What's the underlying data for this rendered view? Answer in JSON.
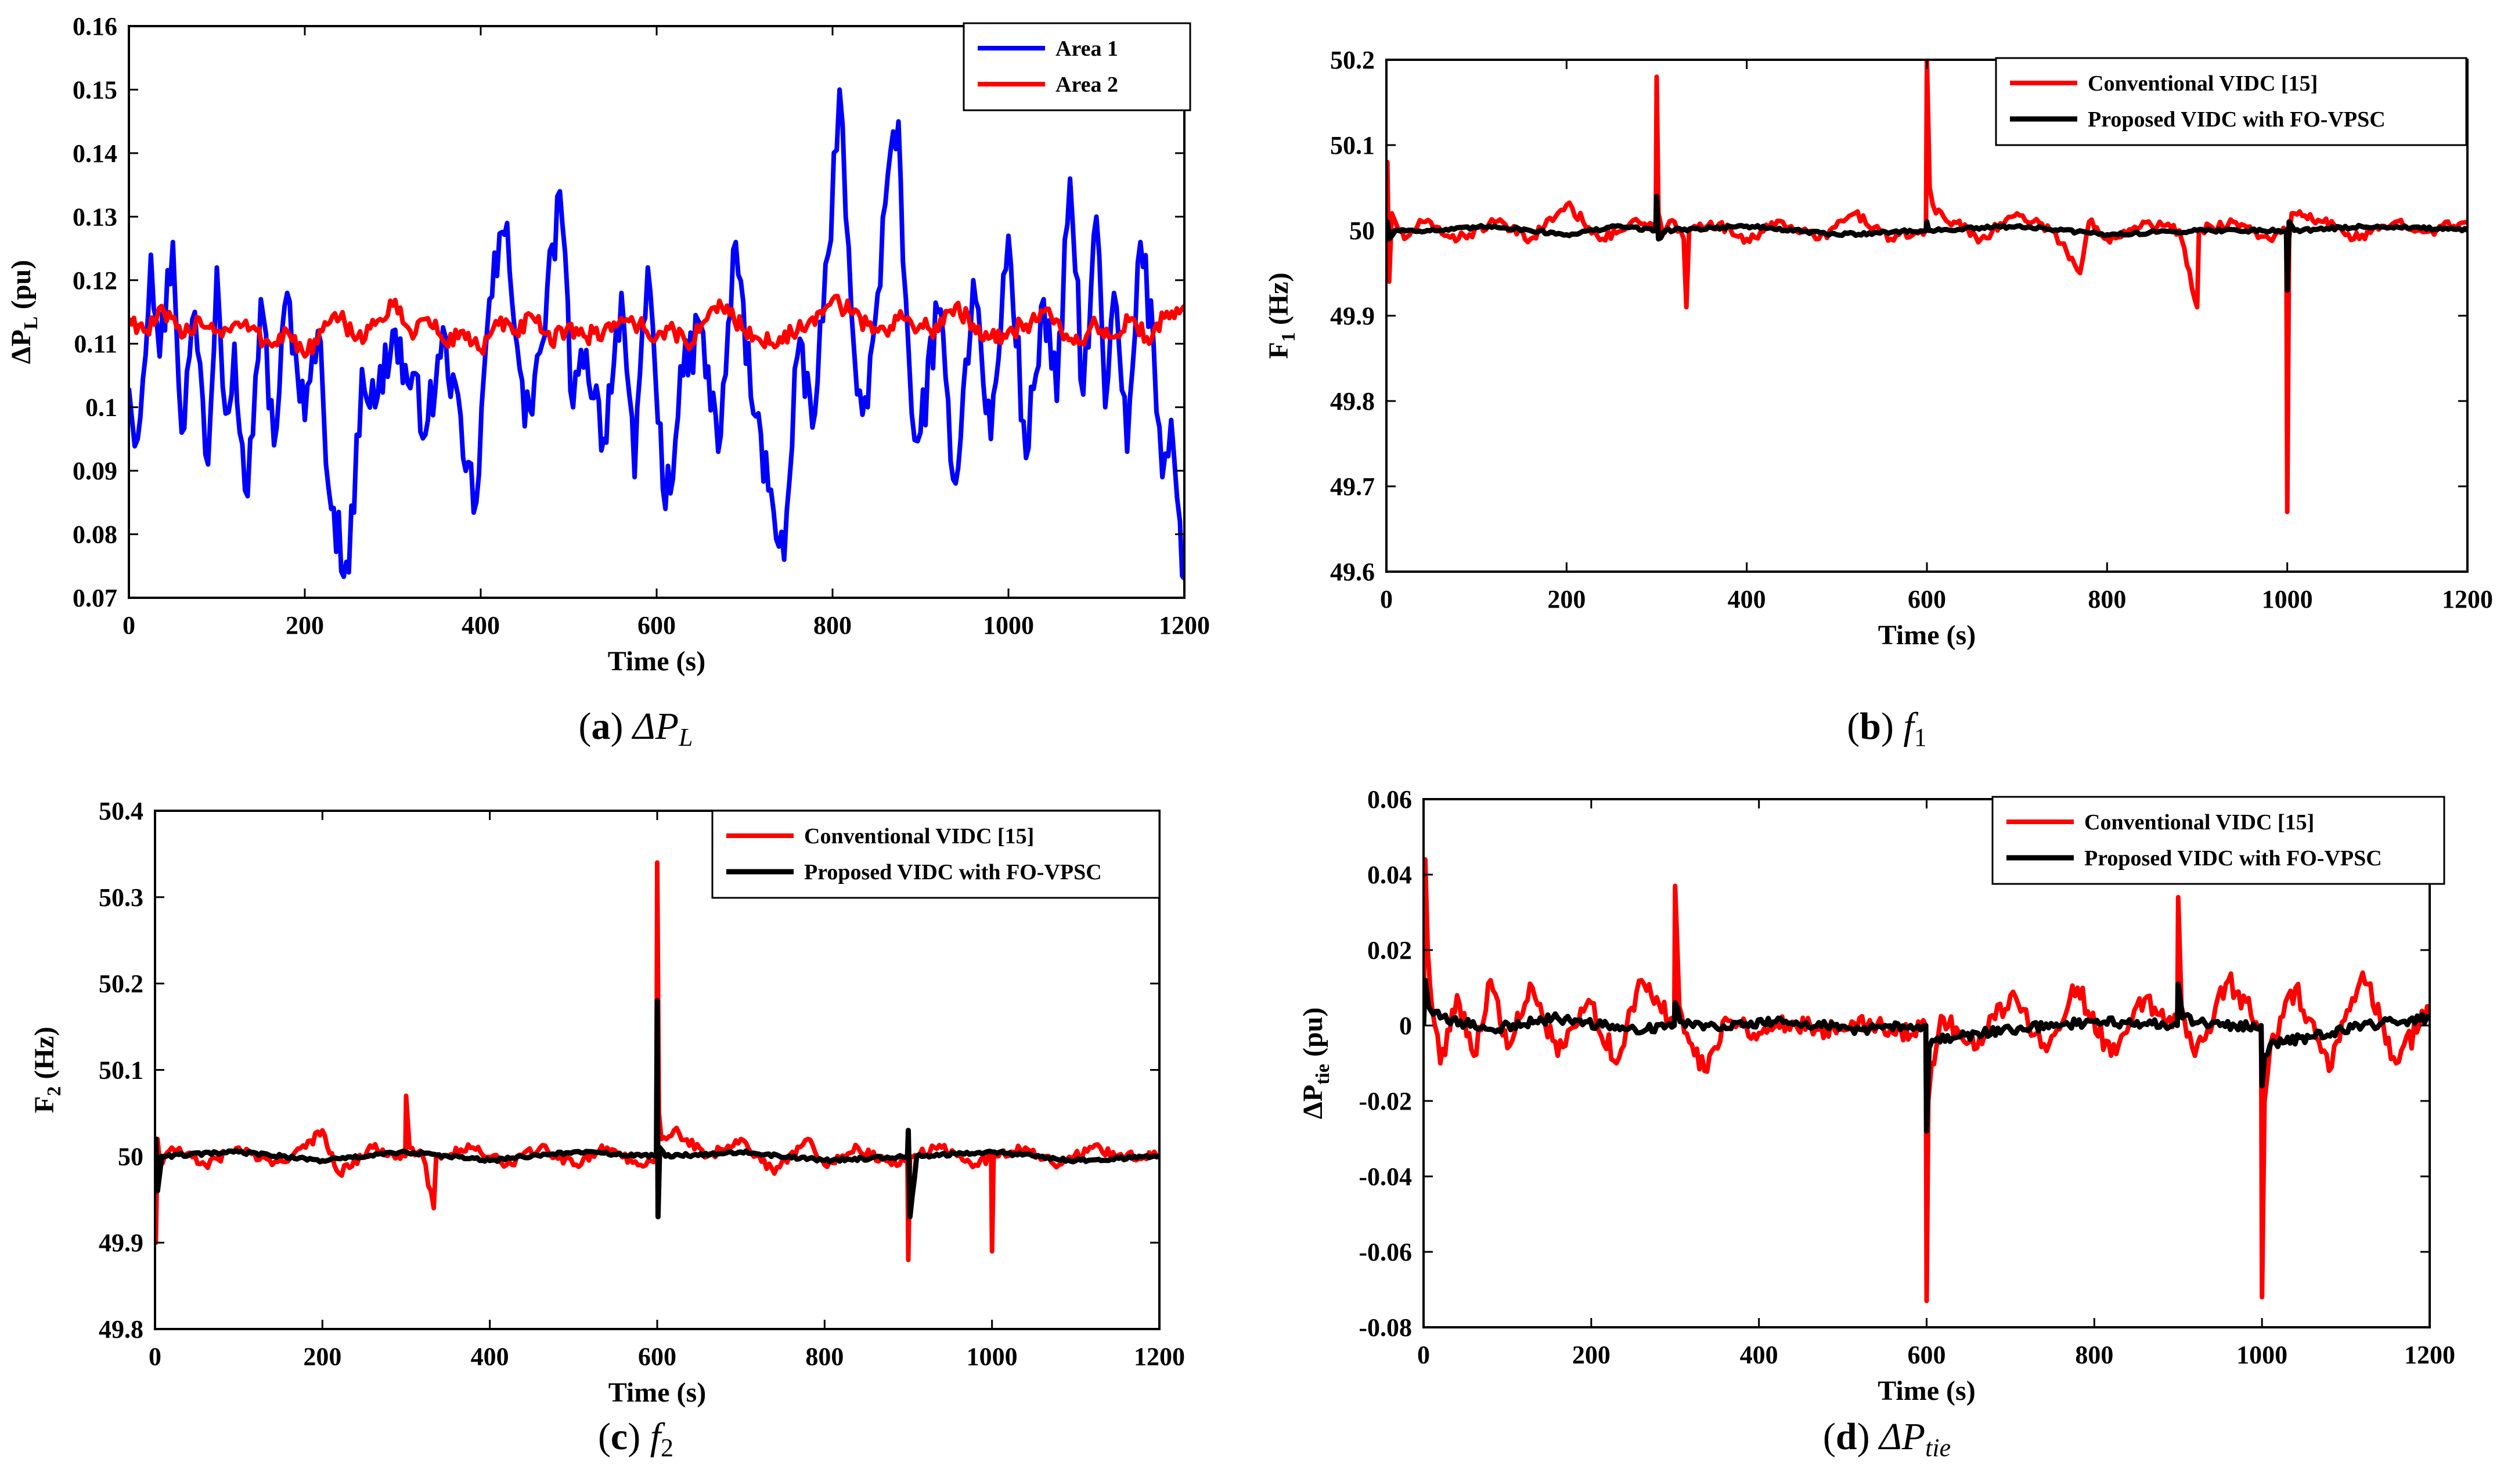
{
  "figure": {
    "panels": [
      {
        "letter": "a",
        "sym": "ΔP",
        "sub": "L"
      },
      {
        "letter": "b",
        "sym": "f",
        "sub": "1"
      },
      {
        "letter": "c",
        "sym": "f",
        "sub": "2"
      },
      {
        "letter": "d",
        "sym": "ΔP",
        "sub": "tie"
      }
    ]
  },
  "chart_data": [
    {
      "type": "line",
      "panel": "a",
      "title": "",
      "xlabel": "Time (s)",
      "ylabel": {
        "main": "ΔP",
        "sub": "L",
        "unit": " (pu)"
      },
      "xlim": [
        0,
        1200
      ],
      "ylim": [
        0.07,
        0.16
      ],
      "x_ticks": [
        0,
        200,
        400,
        600,
        800,
        1000,
        1200
      ],
      "x_tick_labels": [
        "0",
        "200",
        "400",
        "600",
        "800",
        "1000",
        "1200"
      ],
      "y_ticks": [
        0.07,
        0.08,
        0.09,
        0.1,
        0.11,
        0.12,
        0.13,
        0.14,
        0.15,
        0.16
      ],
      "y_tick_labels": [
        "0.07",
        "0.08",
        "0.09",
        "0.1",
        "0.11",
        "0.12",
        "0.13",
        "0.14",
        "0.15",
        "0.16"
      ],
      "legend_position": "top-right",
      "series": [
        {
          "name": "Area 1",
          "color": "#0000ff",
          "width": 8,
          "x": [
            0,
            10,
            25,
            35,
            50,
            60,
            75,
            90,
            100,
            110,
            120,
            135,
            150,
            165,
            180,
            200,
            215,
            230,
            250,
            265,
            280,
            300,
            320,
            340,
            360,
            380,
            395,
            410,
            430,
            450,
            470,
            490,
            505,
            520,
            540,
            560,
            575,
            590,
            610,
            630,
            650,
            670,
            690,
            710,
            730,
            745,
            760,
            780,
            795,
            808,
            815,
            825,
            840,
            860,
            875,
            880,
            890,
            900,
            920,
            940,
            960,
            980,
            1000,
            1020,
            1040,
            1055,
            1070,
            1085,
            1100,
            1110,
            1120,
            1135,
            1150,
            1165,
            1175,
            1185,
            1195,
            1200
          ],
          "values": [
            0.103,
            0.095,
            0.124,
            0.108,
            0.126,
            0.096,
            0.115,
            0.091,
            0.122,
            0.099,
            0.11,
            0.086,
            0.117,
            0.094,
            0.118,
            0.098,
            0.112,
            0.084,
            0.074,
            0.106,
            0.1,
            0.112,
            0.103,
            0.098,
            0.111,
            0.092,
            0.085,
            0.117,
            0.129,
            0.097,
            0.11,
            0.134,
            0.1,
            0.109,
            0.095,
            0.118,
            0.089,
            0.122,
            0.084,
            0.105,
            0.113,
            0.093,
            0.126,
            0.099,
            0.087,
            0.076,
            0.108,
            0.099,
            0.124,
            0.15,
            0.13,
            0.108,
            0.1,
            0.132,
            0.145,
            0.123,
            0.099,
            0.096,
            0.115,
            0.088,
            0.12,
            0.095,
            0.127,
            0.092,
            0.117,
            0.101,
            0.136,
            0.102,
            0.13,
            0.1,
            0.118,
            0.093,
            0.126,
            0.11,
            0.089,
            0.098,
            0.082,
            0.073
          ]
        },
        {
          "name": "Area 2",
          "color": "#ff0000",
          "width": 8,
          "x": [
            0,
            20,
            40,
            60,
            80,
            100,
            130,
            160,
            180,
            200,
            220,
            240,
            260,
            280,
            300,
            320,
            340,
            360,
            380,
            400,
            420,
            440,
            460,
            480,
            500,
            520,
            540,
            560,
            580,
            600,
            620,
            640,
            660,
            680,
            700,
            720,
            740,
            760,
            780,
            800,
            820,
            840,
            860,
            880,
            900,
            920,
            940,
            960,
            980,
            1000,
            1020,
            1040,
            1060,
            1080,
            1100,
            1120,
            1140,
            1160,
            1180,
            1200
          ],
          "values": [
            0.114,
            0.112,
            0.115,
            0.111,
            0.114,
            0.112,
            0.113,
            0.11,
            0.112,
            0.108,
            0.112,
            0.114,
            0.111,
            0.113,
            0.116,
            0.112,
            0.114,
            0.11,
            0.112,
            0.109,
            0.113,
            0.112,
            0.114,
            0.11,
            0.113,
            0.111,
            0.112,
            0.114,
            0.113,
            0.111,
            0.112,
            0.11,
            0.115,
            0.116,
            0.112,
            0.11,
            0.111,
            0.112,
            0.113,
            0.117,
            0.115,
            0.113,
            0.112,
            0.114,
            0.113,
            0.112,
            0.116,
            0.113,
            0.111,
            0.112,
            0.113,
            0.115,
            0.112,
            0.11,
            0.113,
            0.111,
            0.114,
            0.11,
            0.115,
            0.116
          ]
        }
      ]
    },
    {
      "type": "line",
      "panel": "b",
      "title": "",
      "xlabel": "Time (s)",
      "ylabel": {
        "main": "F",
        "sub": "1",
        "unit": " (Hz)"
      },
      "xlim": [
        0,
        1200
      ],
      "ylim": [
        49.6,
        50.2
      ],
      "x_ticks": [
        0,
        200,
        400,
        600,
        800,
        1000,
        1200
      ],
      "x_tick_labels": [
        "0",
        "200",
        "400",
        "600",
        "800",
        "1000",
        "1200"
      ],
      "y_ticks": [
        49.6,
        49.7,
        49.8,
        49.9,
        50,
        50.1,
        50.2
      ],
      "y_tick_labels": [
        "49.6",
        "49.7",
        "49.8",
        "49.9",
        "50",
        "50.1",
        "50.2"
      ],
      "legend_position": "top-right",
      "series": [
        {
          "name": "Conventional VIDC [15]",
          "color": "#ff0000",
          "width": 8,
          "x": [
            0,
            1,
            3,
            6,
            10,
            20,
            40,
            80,
            120,
            160,
            200,
            240,
            280,
            299,
            300,
            302,
            306,
            320,
            330,
            333,
            336,
            360,
            400,
            440,
            480,
            520,
            560,
            599,
            600,
            603,
            610,
            630,
            660,
            700,
            740,
            770,
            780,
            800,
            840,
            880,
            900,
            902,
            940,
            980,
            999,
            1000,
            1002,
            1005,
            1040,
            1080,
            1120,
            1160,
            1200
          ],
          "values": [
            50,
            50.08,
            49.94,
            50.02,
            50.01,
            49.99,
            50.01,
            49.99,
            50.01,
            49.99,
            50.03,
            49.99,
            50.01,
            50,
            50.18,
            50.02,
            50,
            50.01,
            49.99,
            49.91,
            50,
            50.01,
            49.99,
            50.01,
            49.99,
            50.02,
            49.99,
            50,
            50.2,
            50.05,
            50.02,
            50.01,
            49.99,
            50.02,
            50,
            49.95,
            50.01,
            49.99,
            50.01,
            50,
            49.91,
            50,
            50.01,
            49.99,
            50,
            49.67,
            49.99,
            50.02,
            50.01,
            49.99,
            50.01,
            50,
            50.01
          ]
        },
        {
          "name": "Proposed VIDC with FO-VPSC",
          "color": "#000000",
          "width": 9,
          "x": [
            0,
            1,
            3,
            10,
            60,
            120,
            200,
            260,
            299,
            300,
            302,
            310,
            400,
            500,
            599,
            600,
            602,
            610,
            700,
            800,
            900,
            999,
            1000,
            1002,
            1008,
            1100,
            1200
          ],
          "values": [
            50,
            50.01,
            49.99,
            50,
            50,
            50.005,
            49.995,
            50.005,
            50,
            50.04,
            49.99,
            50,
            50.005,
            49.995,
            50,
            50.01,
            50,
            50,
            50.005,
            49.995,
            50,
            50,
            49.93,
            50.01,
            50,
            50.005,
            50
          ]
        }
      ]
    },
    {
      "type": "line",
      "panel": "c",
      "title": "",
      "xlabel": "Time (s)",
      "ylabel": {
        "main": "F",
        "sub": "2",
        "unit": " (Hz)"
      },
      "xlim": [
        0,
        1200
      ],
      "ylim": [
        49.8,
        50.4
      ],
      "x_ticks": [
        0,
        200,
        400,
        600,
        800,
        1000,
        1200
      ],
      "x_tick_labels": [
        "0",
        "200",
        "400",
        "600",
        "800",
        "1000",
        "1200"
      ],
      "y_ticks": [
        49.8,
        49.9,
        50,
        50.1,
        50.2,
        50.3,
        50.4
      ],
      "y_tick_labels": [
        "49.8",
        "49.9",
        "50",
        "50.1",
        "50.2",
        "50.3",
        "50.4"
      ],
      "legend_position": "top-right",
      "series": [
        {
          "name": "Conventional VIDC [15]",
          "color": "#ff0000",
          "width": 8,
          "x": [
            0,
            1,
            3,
            6,
            20,
            60,
            100,
            140,
            180,
            200,
            220,
            260,
            299,
            300,
            304,
            320,
            333,
            336,
            380,
            420,
            460,
            500,
            540,
            580,
            599,
            600,
            602,
            605,
            620,
            660,
            700,
            740,
            780,
            800,
            840,
            880,
            899,
            900,
            902,
            940,
            980,
            999,
            1000,
            1002,
            1040,
            1080,
            1120,
            1160,
            1200
          ],
          "values": [
            50,
            49.9,
            50.02,
            49.99,
            50.01,
            49.99,
            50.01,
            49.99,
            50.01,
            50.03,
            49.98,
            50.01,
            50,
            50.07,
            50.01,
            50,
            49.94,
            50,
            50.01,
            49.99,
            50.01,
            49.99,
            50.01,
            49.99,
            50,
            50.34,
            50.05,
            50.02,
            50.03,
            50,
            50.02,
            49.98,
            50.02,
            49.99,
            50.01,
            49.99,
            50,
            49.88,
            50,
            50.01,
            49.99,
            50,
            49.89,
            50,
            50.01,
            49.99,
            50.01,
            50,
            50
          ]
        },
        {
          "name": "Proposed VIDC with FO-VPSC",
          "color": "#000000",
          "width": 9,
          "x": [
            0,
            1,
            3,
            8,
            100,
            200,
            300,
            400,
            500,
            599,
            600,
            601,
            603,
            610,
            700,
            800,
            899,
            900,
            902,
            910,
            1000,
            1100,
            1200
          ],
          "values": [
            50,
            50.02,
            49.96,
            50,
            50.005,
            49.995,
            50.005,
            49.995,
            50.005,
            50,
            50.18,
            49.93,
            50.01,
            50,
            50.005,
            49.995,
            50,
            50.03,
            49.93,
            50,
            50.005,
            49.995,
            50
          ]
        }
      ]
    },
    {
      "type": "line",
      "panel": "d",
      "title": "",
      "xlabel": "Time (s)",
      "ylabel": {
        "main": "ΔP",
        "sub": "tie",
        "unit": " (pu)"
      },
      "xlim": [
        0,
        1200
      ],
      "ylim": [
        -0.08,
        0.06
      ],
      "x_ticks": [
        0,
        200,
        400,
        600,
        800,
        1000,
        1200
      ],
      "x_tick_labels": [
        "0",
        "200",
        "400",
        "600",
        "800",
        "1000",
        "1200"
      ],
      "y_ticks": [
        -0.08,
        -0.06,
        -0.04,
        -0.02,
        0,
        0.02,
        0.04,
        0.06
      ],
      "y_tick_labels": [
        "-0.08",
        "-0.06",
        "-0.04",
        "-0.02",
        "0",
        "0.02",
        "0.04",
        "0.06"
      ],
      "legend_position": "top-right",
      "series": [
        {
          "name": "Conventional VIDC [15]",
          "color": "#ff0000",
          "width": 8,
          "x": [
            0,
            2,
            5,
            10,
            20,
            40,
            60,
            80,
            100,
            130,
            160,
            200,
            230,
            260,
            299,
            300,
            305,
            320,
            335,
            360,
            400,
            440,
            480,
            520,
            560,
            599,
            600,
            602,
            606,
            620,
            660,
            700,
            740,
            780,
            820,
            860,
            899,
            900,
            904,
            920,
            960,
            999,
            1000,
            1003,
            1010,
            1040,
            1080,
            1120,
            1160,
            1200
          ],
          "values": [
            0,
            0.044,
            0.02,
            0.005,
            -0.01,
            0.008,
            -0.008,
            0.012,
            -0.006,
            0.01,
            -0.008,
            0.006,
            -0.01,
            0.012,
            0,
            0.037,
            0.005,
            -0.005,
            -0.012,
            0.002,
            -0.002,
            0.001,
            -0.001,
            0.002,
            -0.002,
            0,
            -0.073,
            -0.02,
            -0.01,
            0.002,
            -0.006,
            0.008,
            -0.005,
            0.01,
            -0.008,
            0.007,
            0,
            0.034,
            0.005,
            -0.008,
            0.012,
            0,
            -0.072,
            -0.02,
            -0.005,
            0.01,
            -0.012,
            0.014,
            -0.01,
            0.005
          ]
        },
        {
          "name": "Proposed VIDC with FO-VPSC",
          "color": "#000000",
          "width": 9,
          "x": [
            0,
            2,
            6,
            20,
            80,
            160,
            240,
            299,
            300,
            306,
            340,
            420,
            520,
            599,
            600,
            603,
            610,
            640,
            700,
            800,
            899,
            900,
            905,
            950,
            999,
            1000,
            1003,
            1010,
            1060,
            1120,
            1200
          ],
          "values": [
            0,
            0.012,
            0.005,
            0.002,
            -0.001,
            0.002,
            -0.001,
            0,
            0.006,
            0.001,
            0,
            0.001,
            -0.001,
            0,
            -0.028,
            -0.006,
            -0.004,
            -0.003,
            -0.001,
            0.001,
            0,
            0.011,
            0.002,
            0,
            0,
            -0.016,
            -0.008,
            -0.005,
            -0.003,
            0,
            0.002
          ]
        }
      ]
    }
  ]
}
